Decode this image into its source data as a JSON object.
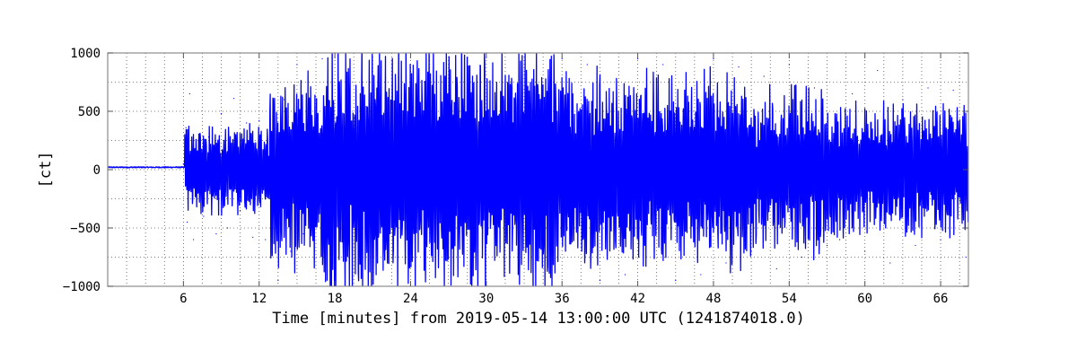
{
  "chart_data": {
    "type": "line",
    "title": "",
    "xlabel": "Time [minutes] from 2019-05-14 13:00:00 UTC (1241874018.0)",
    "ylabel": "[ct]",
    "xlim": [
      0,
      68.2
    ],
    "ylim": [
      -1000,
      1000
    ],
    "x_ticks": [
      6,
      12,
      18,
      24,
      30,
      36,
      42,
      48,
      54,
      60,
      66
    ],
    "y_ticks": [
      -1000,
      -500,
      0,
      500,
      1000
    ],
    "x_tick_labels": [
      "6",
      "12",
      "18",
      "24",
      "30",
      "36",
      "42",
      "48",
      "54",
      "60",
      "66"
    ],
    "y_tick_labels": [
      "−1000",
      "−500",
      "0",
      "500",
      "1000"
    ],
    "grid": true,
    "legend": "none",
    "series": [
      {
        "color": "#0000ff",
        "x": [
          0,
          2,
          4,
          5.9,
          6.0,
          6.2,
          6.3,
          6.5,
          6.8,
          7.2,
          7.6,
          8.0,
          8.6,
          9.0,
          9.5,
          10.0,
          10.5,
          11.0,
          11.5,
          12.0,
          12.5,
          12.9,
          13.0,
          13.5,
          14.0,
          14.5,
          15.0,
          15.5,
          16.0,
          16.5,
          17.0,
          17.5,
          18.0,
          19.0,
          20.0,
          21.0,
          22.0,
          23.0,
          24.0,
          25.0,
          26.0,
          27.0,
          28.0,
          29.0,
          30.0,
          31.0,
          32.0,
          33.0,
          34.0,
          35.0,
          36.0,
          37.0,
          38.0,
          39.0,
          40.0,
          41.0,
          42.0,
          43.0,
          44.0,
          45.0,
          46.0,
          47.0,
          48.0,
          49.0,
          50.0,
          50.8,
          51.0,
          52.0,
          53.0,
          54.0,
          55.0,
          56.0,
          57.0,
          57.3,
          58.0,
          59.0,
          60.0,
          61.0,
          62.0,
          63.0,
          64.0,
          65.0,
          66.0,
          67.0,
          68.0,
          68.2
        ],
        "y": [
          20,
          22,
          21,
          20,
          50,
          360,
          -450,
          650,
          -600,
          300,
          -400,
          280,
          -550,
          480,
          -500,
          610,
          -350,
          400,
          -580,
          420,
          -600,
          430,
          1000,
          -950,
          600,
          -700,
          900,
          -550,
          1000,
          -1000,
          950,
          -1000,
          1000,
          -1000,
          1000,
          -1000,
          1000,
          -1000,
          1000,
          -1000,
          1000,
          -1000,
          1000,
          -1000,
          1000,
          -1000,
          1000,
          -1000,
          1000,
          -1000,
          950,
          -1000,
          900,
          -950,
          1000,
          -900,
          950,
          -1000,
          900,
          -950,
          1000,
          -900,
          950,
          -800,
          880,
          150,
          -700,
          800,
          -850,
          900,
          -750,
          700,
          -650,
          100,
          -600,
          650,
          -700,
          850,
          -800,
          600,
          -650,
          700,
          -600,
          680,
          -750,
          400
        ],
        "note_peaks": [],
        "envelope": [
          {
            "x_from": 0,
            "x_to": 6.1,
            "amplitude": 20,
            "offset": 20
          },
          {
            "x_from": 6.1,
            "x_to": 12.8,
            "amplitude": 420,
            "offset": 0
          },
          {
            "x_from": 12.8,
            "x_to": 17.0,
            "amplitude": 900,
            "offset": 0
          },
          {
            "x_from": 17.0,
            "x_to": 35.5,
            "amplitude": 1150,
            "offset": 0
          },
          {
            "x_from": 35.5,
            "x_to": 50.5,
            "amplitude": 920,
            "offset": 0
          },
          {
            "x_from": 50.5,
            "x_to": 57.0,
            "amplitude": 800,
            "offset": 0
          },
          {
            "x_from": 57.0,
            "x_to": 68.2,
            "amplitude": 620,
            "offset": 0
          }
        ]
      }
    ]
  }
}
